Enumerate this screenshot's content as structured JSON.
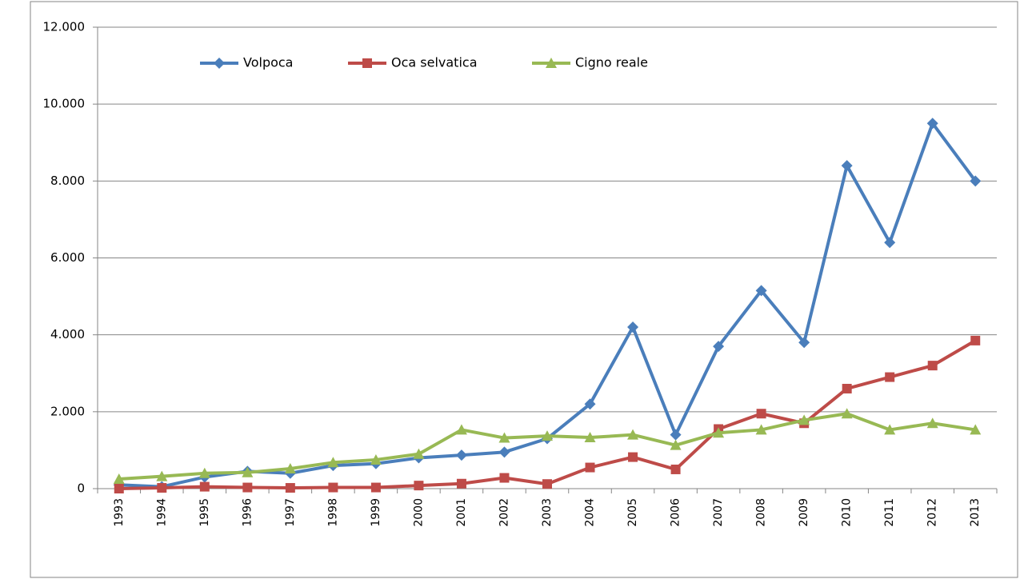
{
  "chart_data": {
    "type": "line",
    "categories": [
      "1993",
      "1994",
      "1995",
      "1996",
      "1997",
      "1998",
      "1999",
      "2000",
      "2001",
      "2002",
      "2003",
      "2004",
      "2005",
      "2006",
      "2007",
      "2008",
      "2009",
      "2010",
      "2011",
      "2012",
      "2013"
    ],
    "series": [
      {
        "name": "Volpoca",
        "color": "#4a7ebb",
        "marker": "diamond",
        "values": [
          100,
          50,
          300,
          450,
          400,
          600,
          650,
          800,
          870,
          950,
          1300,
          2200,
          4200,
          1400,
          3700,
          5150,
          3800,
          8400,
          6400,
          9500,
          8000
        ]
      },
      {
        "name": "Oca selvatica",
        "color": "#be4b48",
        "marker": "square",
        "values": [
          0,
          20,
          50,
          30,
          20,
          30,
          30,
          80,
          130,
          280,
          120,
          550,
          820,
          500,
          1550,
          1950,
          1700,
          2600,
          2900,
          3200,
          3850
        ]
      },
      {
        "name": "Cigno reale",
        "color": "#98b954",
        "marker": "triangle",
        "values": [
          250,
          320,
          400,
          420,
          520,
          680,
          750,
          900,
          1530,
          1320,
          1370,
          1330,
          1400,
          1130,
          1450,
          1530,
          1780,
          1950,
          1530,
          1700,
          1530
        ]
      }
    ],
    "ylim": [
      0,
      12000
    ],
    "yticks": [
      0,
      {
        "value": 2000,
        "label": "2.000"
      },
      {
        "value": 4000,
        "label": "4.000"
      },
      {
        "value": 6000,
        "label": "6.000"
      },
      {
        "value": 8000,
        "label": "8.000"
      },
      {
        "value": 10000,
        "label": "10.000"
      },
      {
        "value": 12000,
        "label": "12.000"
      }
    ],
    "grid": true,
    "legend": "top"
  }
}
